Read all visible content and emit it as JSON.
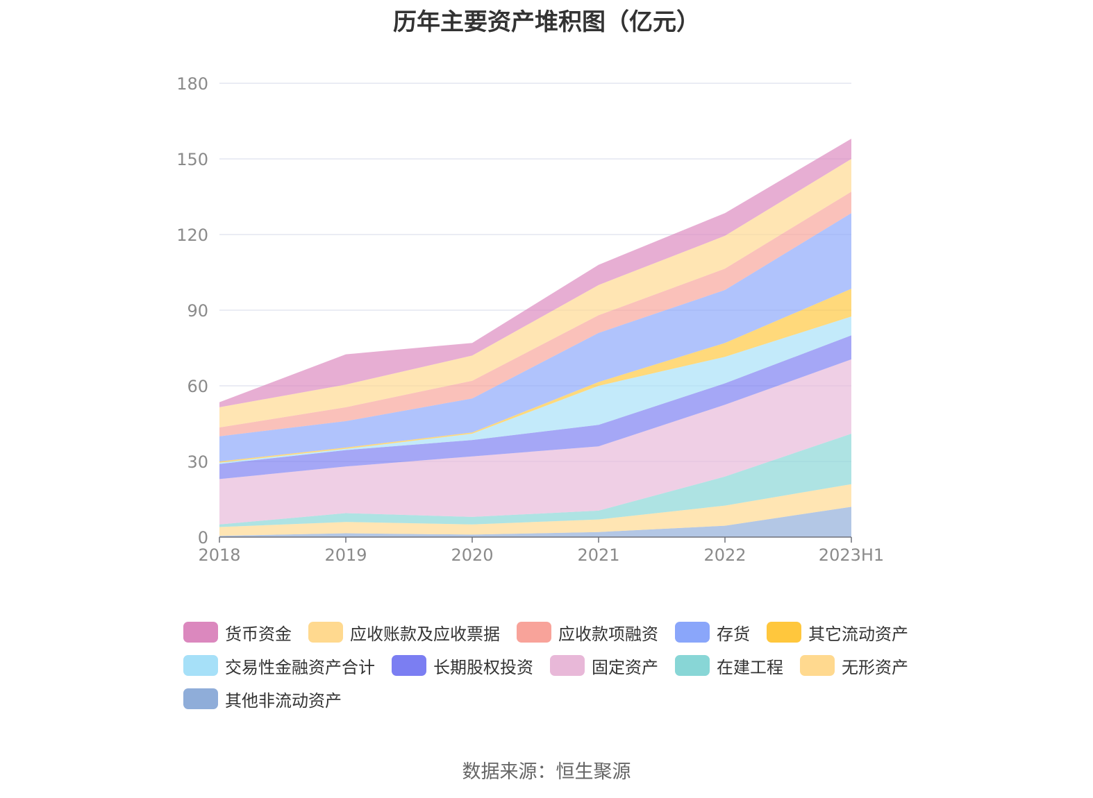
{
  "chart_data": {
    "type": "area",
    "stacked": true,
    "title": "历年主要资产堆积图（亿元）",
    "x": [
      "2018",
      "2019",
      "2020",
      "2021",
      "2022",
      "2023H1"
    ],
    "ylim": [
      0,
      180
    ],
    "yticks": [
      0,
      30,
      60,
      90,
      120,
      150,
      180
    ],
    "grid": true,
    "legend_position": "bottom",
    "series": [
      {
        "name": "其他非流动资产",
        "color": "#8fadd9",
        "values": [
          0.5,
          1.5,
          1.0,
          2.0,
          4.5,
          12.0
        ]
      },
      {
        "name": "无形资产",
        "color": "#ffd98f",
        "values": [
          3.5,
          4.5,
          4.0,
          5.0,
          8.0,
          9.0
        ]
      },
      {
        "name": "在建工程",
        "color": "#88d6d6",
        "values": [
          1.0,
          3.5,
          3.0,
          3.5,
          11.5,
          20.0
        ]
      },
      {
        "name": "固定资产",
        "color": "#e8b8d8",
        "values": [
          18.0,
          18.5,
          24.0,
          25.5,
          28.5,
          29.5
        ]
      },
      {
        "name": "长期股权投资",
        "color": "#7b7ef2",
        "values": [
          6.0,
          6.5,
          6.5,
          8.5,
          8.5,
          9.5
        ]
      },
      {
        "name": "交易性金融资产合计",
        "color": "#a6e0f8",
        "values": [
          0.5,
          0.5,
          2.5,
          15.5,
          10.5,
          7.5
        ]
      },
      {
        "name": "其它流动资产",
        "color": "#ffc73d",
        "values": [
          0.5,
          0.5,
          0.5,
          1.5,
          5.5,
          11.0
        ]
      },
      {
        "name": "存货",
        "color": "#8aa6fa",
        "values": [
          10.0,
          10.5,
          13.5,
          19.5,
          21.0,
          30.0
        ]
      },
      {
        "name": "应收款项融资",
        "color": "#f8a39a",
        "values": [
          3.5,
          5.5,
          7.0,
          7.0,
          8.5,
          8.5
        ]
      },
      {
        "name": "应收账款及应收票据",
        "color": "#ffd98f",
        "values": [
          8.0,
          9.0,
          10.0,
          12.0,
          13.0,
          13.0
        ]
      },
      {
        "name": "货币资金",
        "color": "#db88be",
        "values": [
          2.0,
          12.0,
          5.0,
          8.0,
          9.0,
          8.0
        ]
      }
    ]
  },
  "legend_order": [
    "货币资金",
    "应收账款及应收票据",
    "应收款项融资",
    "存货",
    "其它流动资产",
    "交易性金融资产合计",
    "长期股权投资",
    "固定资产",
    "在建工程",
    "无形资产",
    "其他非流动资产"
  ],
  "source_text": "数据来源：恒生聚源"
}
